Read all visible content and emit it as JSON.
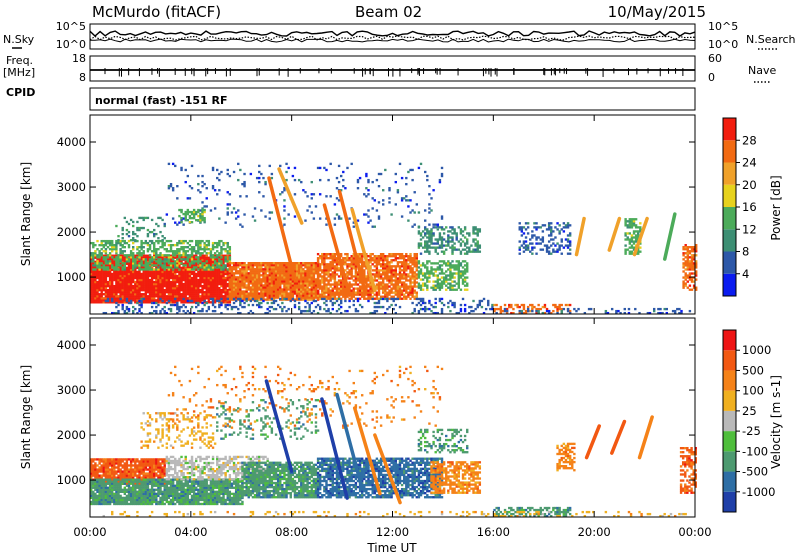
{
  "header": {
    "site": "McMurdo (fitACF)",
    "beam": "Beam 02",
    "date": "10/May/2015",
    "left_label_sky": "N.Sky",
    "left_label_freq_line1": "Freq.",
    "left_label_freq_line2": "[MHz]",
    "left_label_cpid": "CPID",
    "right_label_search": "N.Search",
    "right_label_nave": "Nave",
    "sky_ticks": [
      "10^5",
      "10^0"
    ],
    "freq_ticks": [
      "18",
      "8"
    ],
    "search_ticks": [
      "10^5",
      "10^0"
    ],
    "nave_ticks": [
      "60",
      "0"
    ],
    "cpid_text": "normal (fast) -151 RF"
  },
  "axes": {
    "x_ticks": [
      "00:00",
      "04:00",
      "08:00",
      "12:00",
      "16:00",
      "20:00",
      "00:00"
    ],
    "x_label": "Time UT",
    "y_label": "Slant Range [km]",
    "y_ticks": [
      "1000",
      "2000",
      "3000",
      "4000"
    ]
  },
  "colorbars": {
    "power": {
      "label": "Power [dB]",
      "ticks": [
        "4",
        "8",
        "12",
        "16",
        "20",
        "24",
        "28"
      ],
      "colors": [
        "#0b1cf0",
        "#2d58a8",
        "#3d8f74",
        "#4cab5a",
        "#e7d21d",
        "#f0a12a",
        "#f26a12",
        "#f21d0e"
      ]
    },
    "velocity": {
      "label": "Velocity [m s-1]",
      "ticks": [
        "1000",
        "500",
        "100",
        "25",
        "-25",
        "-100",
        "-500",
        "-1000"
      ],
      "colors": [
        "#1f3fa8",
        "#2e6ea5",
        "#4d9a70",
        "#4fbe3c",
        "#b9b9b9",
        "#f0b020",
        "#f58218",
        "#f25812",
        "#ee1414"
      ]
    }
  },
  "chart_data": [
    {
      "type": "heatmap",
      "title": "Power",
      "xlabel": "",
      "ylabel": "Slant Range [km]",
      "x_range_hours": [
        0,
        24
      ],
      "ylim": [
        180,
        4600
      ],
      "colorbar": "power",
      "scatter_blocks": [
        {
          "t0": 0.0,
          "t1": 5.5,
          "r0": 420,
          "r1": 1480,
          "level": 7,
          "density": 0.95
        },
        {
          "t0": 0.0,
          "t1": 5.5,
          "r0": 1150,
          "r1": 1800,
          "level": 3,
          "density": 0.55
        },
        {
          "t0": 5.5,
          "t1": 9.0,
          "r0": 480,
          "r1": 1300,
          "level": 6,
          "density": 0.95
        },
        {
          "t0": 9.0,
          "t1": 13.0,
          "r0": 500,
          "r1": 1500,
          "level": 6,
          "density": 0.8
        },
        {
          "t0": 13.0,
          "t1": 15.0,
          "r0": 700,
          "r1": 1350,
          "level": 3,
          "density": 0.6
        },
        {
          "t0": 13.0,
          "t1": 15.5,
          "r0": 1500,
          "r1": 2100,
          "level": 2,
          "density": 0.45
        },
        {
          "t0": 0.5,
          "t1": 16.0,
          "r0": 180,
          "r1": 520,
          "level": 1,
          "density": 0.25
        },
        {
          "t0": 16.0,
          "t1": 19.0,
          "r0": 180,
          "r1": 380,
          "level": 6,
          "density": 0.45
        },
        {
          "t0": 16.0,
          "t1": 23.8,
          "r0": 180,
          "r1": 300,
          "level": 1,
          "density": 0.22
        },
        {
          "t0": 3.0,
          "t1": 14.0,
          "r0": 2100,
          "r1": 3500,
          "level": 1,
          "density": 0.07
        },
        {
          "t0": 3.5,
          "t1": 4.5,
          "r0": 2200,
          "r1": 2500,
          "level": 3,
          "density": 0.55
        },
        {
          "t0": 1.0,
          "t1": 3.0,
          "r0": 1800,
          "r1": 2300,
          "level": 2,
          "density": 0.25
        },
        {
          "t0": 17.0,
          "t1": 19.0,
          "r0": 1500,
          "r1": 2200,
          "level": 1,
          "density": 0.35
        },
        {
          "t0": 21.2,
          "t1": 21.8,
          "r0": 1500,
          "r1": 2300,
          "level": 3,
          "density": 0.55
        },
        {
          "t0": 23.5,
          "t1": 24.0,
          "r0": 700,
          "r1": 1700,
          "level": 6,
          "density": 0.65
        }
      ],
      "streaks": [
        {
          "t0": 7.1,
          "r0": 3200,
          "t1": 8.1,
          "r1": 1000,
          "level": 6
        },
        {
          "t0": 7.5,
          "r0": 3400,
          "t1": 8.4,
          "r1": 2200,
          "level": 5
        },
        {
          "t0": 9.3,
          "r0": 2600,
          "t1": 10.3,
          "r1": 600,
          "level": 6
        },
        {
          "t0": 9.9,
          "r0": 2900,
          "t1": 10.9,
          "r1": 700,
          "level": 6
        },
        {
          "t0": 10.4,
          "r0": 2500,
          "t1": 11.3,
          "r1": 700,
          "level": 5
        },
        {
          "t0": 19.6,
          "r0": 2300,
          "t1": 19.3,
          "r1": 1500,
          "level": 5
        },
        {
          "t0": 21.0,
          "r0": 2300,
          "t1": 20.6,
          "r1": 1600,
          "level": 5
        },
        {
          "t0": 22.1,
          "r0": 2300,
          "t1": 21.6,
          "r1": 1500,
          "level": 5
        },
        {
          "t0": 23.2,
          "r0": 2400,
          "t1": 22.8,
          "r1": 1400,
          "level": 3
        }
      ]
    },
    {
      "type": "heatmap",
      "title": "Velocity",
      "xlabel": "Time UT",
      "ylabel": "Slant Range [km]",
      "x_range_hours": [
        0,
        24
      ],
      "ylim": [
        180,
        4600
      ],
      "colorbar": "velocity",
      "scatter_blocks": [
        {
          "t0": 0.0,
          "t1": 3.0,
          "r0": 900,
          "r1": 1450,
          "level": 7,
          "density": 0.9
        },
        {
          "t0": 0.0,
          "t1": 6.0,
          "r0": 450,
          "r1": 1000,
          "level": 2,
          "density": 0.9
        },
        {
          "t0": 3.0,
          "t1": 7.0,
          "r0": 1000,
          "r1": 1500,
          "level": 4,
          "density": 0.6
        },
        {
          "t0": 6.0,
          "t1": 9.0,
          "r0": 600,
          "r1": 1400,
          "level": 2,
          "density": 0.85
        },
        {
          "t0": 9.0,
          "t1": 14.0,
          "r0": 600,
          "r1": 1500,
          "level": 1,
          "density": 0.75
        },
        {
          "t0": 13.5,
          "t1": 15.5,
          "r0": 700,
          "r1": 1400,
          "level": 6,
          "density": 0.65
        },
        {
          "t0": 16.0,
          "t1": 19.0,
          "r0": 180,
          "r1": 380,
          "level": 2,
          "density": 0.5
        },
        {
          "t0": 0.5,
          "t1": 23.8,
          "r0": 180,
          "r1": 300,
          "level": 5,
          "density": 0.2
        },
        {
          "t0": 2.0,
          "t1": 5.0,
          "r0": 1700,
          "r1": 2500,
          "level": 5,
          "density": 0.22
        },
        {
          "t0": 5.0,
          "t1": 9.0,
          "r0": 1900,
          "r1": 2800,
          "level": 2,
          "density": 0.15
        },
        {
          "t0": 3.0,
          "t1": 14.0,
          "r0": 2100,
          "r1": 3500,
          "level": 6,
          "density": 0.06
        },
        {
          "t0": 13.0,
          "t1": 15.0,
          "r0": 1600,
          "r1": 2100,
          "level": 2,
          "density": 0.35
        },
        {
          "t0": 18.5,
          "t1": 19.2,
          "r0": 1200,
          "r1": 1800,
          "level": 6,
          "density": 0.55
        },
        {
          "t0": 23.4,
          "t1": 24.0,
          "r0": 700,
          "r1": 1700,
          "level": 7,
          "density": 0.6
        }
      ],
      "streaks": [
        {
          "t0": 7.0,
          "r0": 3200,
          "t1": 8.0,
          "r1": 1200,
          "level": 0
        },
        {
          "t0": 9.2,
          "r0": 2800,
          "t1": 10.2,
          "r1": 600,
          "level": 0
        },
        {
          "t0": 9.8,
          "r0": 2900,
          "t1": 10.8,
          "r1": 800,
          "level": 1
        },
        {
          "t0": 10.5,
          "r0": 2600,
          "t1": 11.5,
          "r1": 700,
          "level": 6
        },
        {
          "t0": 11.3,
          "r0": 2000,
          "t1": 12.3,
          "r1": 500,
          "level": 6
        },
        {
          "t0": 20.2,
          "r0": 2200,
          "t1": 19.7,
          "r1": 1500,
          "level": 7
        },
        {
          "t0": 21.2,
          "r0": 2300,
          "t1": 20.7,
          "r1": 1600,
          "level": 7
        },
        {
          "t0": 22.3,
          "r0": 2400,
          "t1": 21.8,
          "r1": 1500,
          "level": 6
        }
      ]
    }
  ]
}
